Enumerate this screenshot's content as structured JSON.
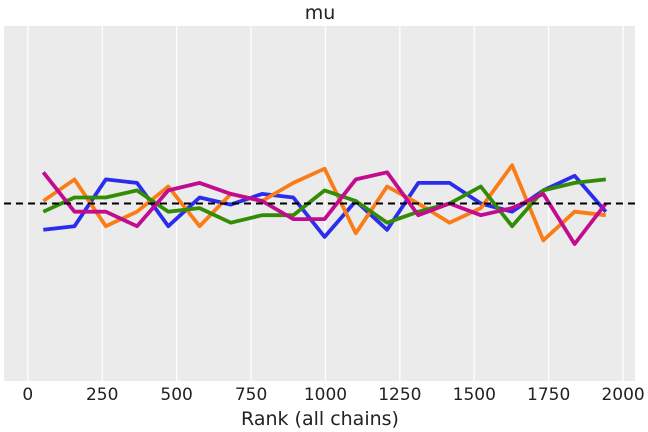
{
  "chart_data": {
    "type": "line",
    "title": "mu",
    "xlabel": "Rank (all chains)",
    "ylabel": "",
    "xlim": [
      -80,
      2040
    ],
    "ylim": [
      -0.5,
      0.5
    ],
    "xticks": [
      0,
      250,
      500,
      750,
      1000,
      1250,
      1500,
      1750,
      2000
    ],
    "xtick_labels": [
      "0",
      "250",
      "500",
      "750",
      "1000",
      "1250",
      "1500",
      "1750",
      "2000"
    ],
    "grid": "vertical",
    "background": "#ebebeb",
    "reference_line": {
      "y": 0,
      "style": "dashed",
      "color": "#000000"
    },
    "x": [
      52,
      157,
      262,
      367,
      472,
      577,
      682,
      787,
      892,
      997,
      1102,
      1207,
      1312,
      1417,
      1522,
      1627,
      1732,
      1837,
      1942
    ],
    "series": [
      {
        "color": "#2a2eec",
        "values": [
          -0.074,
          -0.064,
          0.068,
          0.058,
          -0.064,
          0.017,
          -0.003,
          0.027,
          0.017,
          -0.094,
          0.007,
          -0.074,
          0.058,
          0.058,
          0.0,
          -0.023,
          0.037,
          0.078,
          -0.023
        ]
      },
      {
        "color": "#fa7c17",
        "values": [
          0.007,
          0.068,
          -0.064,
          -0.023,
          0.048,
          -0.064,
          0.027,
          0.007,
          0.058,
          0.098,
          -0.084,
          0.048,
          0.0,
          -0.054,
          -0.013,
          0.108,
          -0.104,
          -0.023,
          -0.033
        ]
      },
      {
        "color": "#328c06",
        "values": [
          -0.023,
          0.017,
          0.017,
          0.037,
          -0.023,
          -0.013,
          -0.054,
          -0.033,
          -0.033,
          0.037,
          0.007,
          -0.054,
          -0.023,
          0.0,
          0.048,
          -0.064,
          0.037,
          0.058,
          0.068
        ]
      },
      {
        "color": "#c10c90",
        "values": [
          0.088,
          -0.023,
          -0.023,
          -0.064,
          0.037,
          0.058,
          0.027,
          0.007,
          -0.044,
          -0.044,
          0.068,
          0.088,
          -0.033,
          0.0,
          -0.033,
          -0.013,
          0.027,
          -0.114,
          0.0
        ]
      }
    ]
  }
}
